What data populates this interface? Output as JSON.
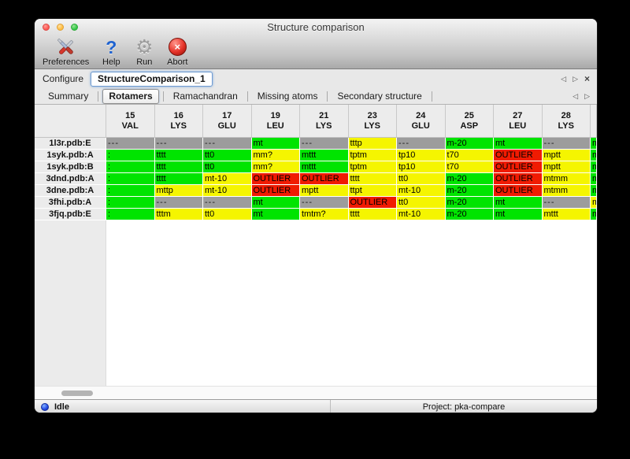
{
  "window": {
    "title": "Structure comparison"
  },
  "toolbar": [
    {
      "id": "preferences",
      "label": "Preferences",
      "icon": "tools-icon",
      "glyph": ""
    },
    {
      "id": "help",
      "label": "Help",
      "icon": "question-mark-icon",
      "glyph": "?"
    },
    {
      "id": "run",
      "label": "Run",
      "icon": "gear-icon",
      "glyph": "⚙"
    },
    {
      "id": "abort",
      "label": "Abort",
      "icon": "abort-cross-icon",
      "glyph": "×"
    }
  ],
  "configure": {
    "label": "Configure",
    "value": "StructureComparison_1"
  },
  "nav_glyphs": {
    "prev": "◁",
    "next": "▷",
    "close": "×"
  },
  "tabs": {
    "items": [
      "Summary",
      "Rotamers",
      "Ramachandran",
      "Missing atoms",
      "Secondary structure"
    ],
    "selected_index": 1
  },
  "palette": {
    "green": "#00e400",
    "yellow": "#f5f500",
    "red": "#f01b02",
    "gray": "#9c9c9c"
  },
  "table": {
    "columns": [
      {
        "num": "15",
        "res": "VAL"
      },
      {
        "num": "16",
        "res": "LYS"
      },
      {
        "num": "17",
        "res": "GLU"
      },
      {
        "num": "19",
        "res": "LEU"
      },
      {
        "num": "21",
        "res": "LYS"
      },
      {
        "num": "23",
        "res": "LYS"
      },
      {
        "num": "24",
        "res": "GLU"
      },
      {
        "num": "25",
        "res": "ASP"
      },
      {
        "num": "27",
        "res": "LEU"
      },
      {
        "num": "28",
        "res": "LYS"
      }
    ],
    "rows": [
      {
        "label": "1l3r.pdb:E",
        "cells": [
          {
            "t": "---",
            "c": "gray"
          },
          {
            "t": "---",
            "c": "gray"
          },
          {
            "t": "---",
            "c": "gray"
          },
          {
            "t": "mt",
            "c": "green"
          },
          {
            "t": "---",
            "c": "gray"
          },
          {
            "t": "tttp",
            "c": "yellow"
          },
          {
            "t": "---",
            "c": "gray"
          },
          {
            "t": "m-20",
            "c": "green"
          },
          {
            "t": "mt",
            "c": "green"
          },
          {
            "t": "---",
            "c": "gray"
          }
        ],
        "clipped": {
          "t": "m",
          "c": "green"
        }
      },
      {
        "label": "1syk.pdb:A",
        "cells": [
          {
            "t": ":",
            "c": "green"
          },
          {
            "t": "tttt",
            "c": "green"
          },
          {
            "t": "tt0",
            "c": "green"
          },
          {
            "t": "mm?",
            "c": "yellow"
          },
          {
            "t": "mttt",
            "c": "green"
          },
          {
            "t": "tptm",
            "c": "yellow"
          },
          {
            "t": "tp10",
            "c": "yellow"
          },
          {
            "t": "t70",
            "c": "yellow"
          },
          {
            "t": "OUTLIER",
            "c": "red"
          },
          {
            "t": "mptt",
            "c": "yellow"
          }
        ],
        "clipped": {
          "t": "m",
          "c": "green"
        }
      },
      {
        "label": "1syk.pdb:B",
        "cells": [
          {
            "t": ":",
            "c": "green"
          },
          {
            "t": "tttt",
            "c": "green"
          },
          {
            "t": "tt0",
            "c": "green"
          },
          {
            "t": "mm?",
            "c": "yellow"
          },
          {
            "t": "mttt",
            "c": "green"
          },
          {
            "t": "tptm",
            "c": "yellow"
          },
          {
            "t": "tp10",
            "c": "yellow"
          },
          {
            "t": "t70",
            "c": "yellow"
          },
          {
            "t": "OUTLIER",
            "c": "red"
          },
          {
            "t": "mptt",
            "c": "yellow"
          }
        ],
        "clipped": {
          "t": "m",
          "c": "green"
        }
      },
      {
        "label": "3dnd.pdb:A",
        "cells": [
          {
            "t": ":",
            "c": "green"
          },
          {
            "t": "tttt",
            "c": "green"
          },
          {
            "t": "mt-10",
            "c": "yellow"
          },
          {
            "t": "OUTLIER",
            "c": "red"
          },
          {
            "t": "OUTLIER",
            "c": "red"
          },
          {
            "t": "tttt",
            "c": "yellow"
          },
          {
            "t": "tt0",
            "c": "yellow"
          },
          {
            "t": "m-20",
            "c": "green"
          },
          {
            "t": "OUTLIER",
            "c": "red"
          },
          {
            "t": "mtmm",
            "c": "yellow"
          }
        ],
        "clipped": {
          "t": "m",
          "c": "green"
        }
      },
      {
        "label": "3dne.pdb:A",
        "cells": [
          {
            "t": ":",
            "c": "green"
          },
          {
            "t": "mttp",
            "c": "yellow"
          },
          {
            "t": "mt-10",
            "c": "yellow"
          },
          {
            "t": "OUTLIER",
            "c": "red"
          },
          {
            "t": "mptt",
            "c": "yellow"
          },
          {
            "t": "ttpt",
            "c": "yellow"
          },
          {
            "t": "mt-10",
            "c": "yellow"
          },
          {
            "t": "m-20",
            "c": "green"
          },
          {
            "t": "OUTLIER",
            "c": "red"
          },
          {
            "t": "mtmm",
            "c": "yellow"
          }
        ],
        "clipped": {
          "t": "m",
          "c": "green"
        }
      },
      {
        "label": "3fhi.pdb:A",
        "cells": [
          {
            "t": ":",
            "c": "green"
          },
          {
            "t": "---",
            "c": "gray"
          },
          {
            "t": "---",
            "c": "gray"
          },
          {
            "t": "mt",
            "c": "green"
          },
          {
            "t": "---",
            "c": "gray"
          },
          {
            "t": "OUTLIER",
            "c": "red"
          },
          {
            "t": "tt0",
            "c": "yellow"
          },
          {
            "t": "m-20",
            "c": "green"
          },
          {
            "t": "mt",
            "c": "green"
          },
          {
            "t": "---",
            "c": "gray"
          }
        ],
        "clipped": {
          "t": "m",
          "c": "yellow"
        }
      },
      {
        "label": "3fjq.pdb:E",
        "cells": [
          {
            "t": ":",
            "c": "green"
          },
          {
            "t": "tttm",
            "c": "yellow"
          },
          {
            "t": "tt0",
            "c": "yellow"
          },
          {
            "t": "mt",
            "c": "green"
          },
          {
            "t": "tmtm?",
            "c": "yellow"
          },
          {
            "t": "tttt",
            "c": "yellow"
          },
          {
            "t": "mt-10",
            "c": "yellow"
          },
          {
            "t": "m-20",
            "c": "green"
          },
          {
            "t": "mt",
            "c": "green"
          },
          {
            "t": "mttt",
            "c": "yellow"
          }
        ],
        "clipped": {
          "t": "m",
          "c": "green"
        }
      }
    ]
  },
  "statusbar": {
    "status": "Idle",
    "project": "Project: pka-compare"
  }
}
